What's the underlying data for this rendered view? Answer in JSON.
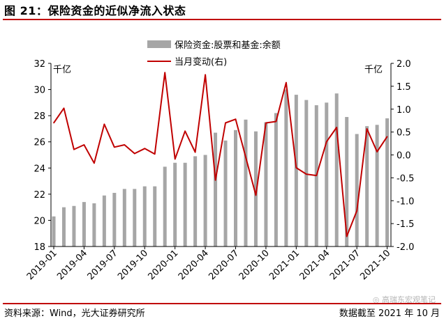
{
  "title": "图 21：保险资金的近似净流入状态",
  "source": "资料来源：Wind，光大证券研究所",
  "dateline": "数据截至 2021 年 10 月",
  "watermark": "高瑞东宏观笔记",
  "colors": {
    "bar": "#a6a6a6",
    "line": "#c00000",
    "rule": "#c00000"
  },
  "chart_data": {
    "type": "bar+line",
    "categories": [
      "2019-01",
      "2019-02",
      "2019-03",
      "2019-04",
      "2019-05",
      "2019-06",
      "2019-07",
      "2019-08",
      "2019-09",
      "2019-10",
      "2019-11",
      "2019-12",
      "2020-01",
      "2020-02",
      "2020-03",
      "2020-04",
      "2020-05",
      "2020-06",
      "2020-07",
      "2020-08",
      "2020-09",
      "2020-10",
      "2020-11",
      "2020-12",
      "2021-01",
      "2021-02",
      "2021-03",
      "2021-04",
      "2021-05",
      "2021-06",
      "2021-07",
      "2021-08",
      "2021-09",
      "2021-10"
    ],
    "x_tick_labels": [
      "2019-01",
      "2019-04",
      "2019-07",
      "2019-10",
      "2020-01",
      "2020-04",
      "2020-07",
      "2020-10",
      "2021-01",
      "2021-04",
      "2021-07",
      "2021-10"
    ],
    "series": [
      {
        "name": "保险资金:股票和基金:余额",
        "type": "bar",
        "axis": "left",
        "values": [
          20.3,
          21.0,
          21.1,
          21.4,
          21.3,
          21.9,
          22.1,
          22.4,
          22.4,
          22.6,
          22.6,
          24.1,
          24.4,
          24.4,
          24.9,
          25.0,
          26.7,
          26.1,
          26.9,
          27.7,
          26.8,
          27.5,
          28.2,
          30.0,
          29.6,
          29.2,
          28.8,
          29.0,
          29.7,
          27.9,
          26.6,
          27.2,
          27.3,
          27.8
        ]
      },
      {
        "name": "当月变动(右)",
        "type": "line",
        "axis": "right",
        "values": [
          0.7,
          1.02,
          0.12,
          0.22,
          -0.18,
          0.67,
          0.17,
          0.22,
          0.03,
          0.14,
          0.02,
          1.8,
          -0.09,
          0.52,
          0.06,
          1.75,
          -0.55,
          0.7,
          0.78,
          -0.05,
          -0.88,
          0.7,
          0.73,
          1.58,
          -0.28,
          -0.42,
          -0.45,
          0.29,
          0.6,
          -1.78,
          -1.22,
          0.57,
          0.07,
          0.4
        ]
      }
    ],
    "y_left": {
      "unit": "千亿",
      "min": 18,
      "max": 32,
      "ticks": [
        "18",
        "20",
        "22",
        "24",
        "26",
        "28",
        "30",
        "32"
      ]
    },
    "y_right": {
      "unit": "千亿",
      "min": -2.0,
      "max": 2.0,
      "ticks": [
        "-2.0",
        "-1.5",
        "-1.0",
        "-0.5",
        "0.0",
        "0.5",
        "1.0",
        "1.5",
        "2.0"
      ]
    }
  }
}
